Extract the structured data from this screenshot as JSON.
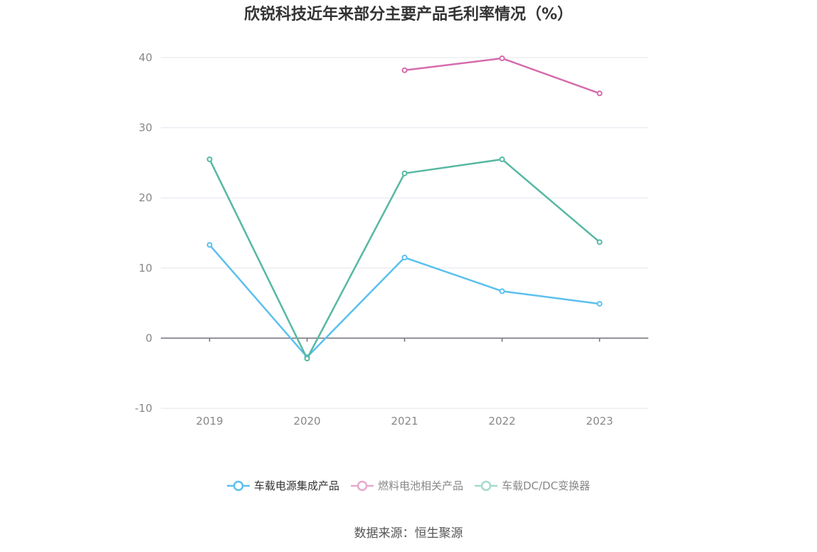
{
  "title": "欣锐科技近年来部分主要产品毛利率情况（%）",
  "source": "数据来源：恒生聚源",
  "chart_data": {
    "type": "line",
    "title": "欣锐科技近年来部分主要产品毛利率情况（%）",
    "xlabel": "",
    "ylabel": "",
    "x": [
      "2019",
      "2020",
      "2021",
      "2022",
      "2023"
    ],
    "ylim": [
      -10,
      40
    ],
    "yticks": [
      40,
      30,
      20,
      10,
      0,
      -10
    ],
    "grid": true,
    "legend_position": "bottom",
    "series": [
      {
        "name": "车载电源集成产品",
        "color": "#5bc0ee",
        "values": [
          13.3,
          -2.7,
          11.5,
          6.7,
          4.9
        ]
      },
      {
        "name": "燃料电池相关产品",
        "color": "#d56cad",
        "values": [
          null,
          null,
          38.2,
          39.9,
          34.9
        ]
      },
      {
        "name": "车载DC/DC变换器",
        "color": "#56b8a2",
        "values": [
          25.5,
          -2.9,
          23.5,
          25.5,
          13.7
        ]
      }
    ]
  }
}
